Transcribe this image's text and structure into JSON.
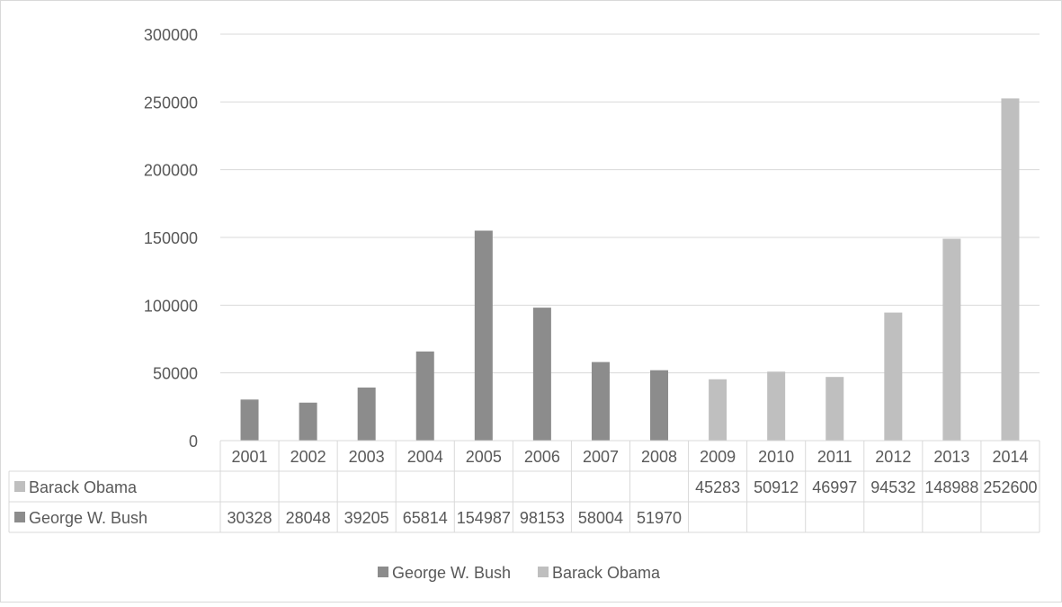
{
  "chart_data": {
    "type": "bar",
    "categories": [
      "2001",
      "2002",
      "2003",
      "2004",
      "2005",
      "2006",
      "2007",
      "2008",
      "2009",
      "2010",
      "2011",
      "2012",
      "2013",
      "2014"
    ],
    "series": [
      {
        "name": "George W. Bush",
        "color": "#8c8c8c",
        "values": [
          30328,
          28048,
          39205,
          65814,
          154987,
          98153,
          58004,
          51970,
          null,
          null,
          null,
          null,
          null,
          null
        ],
        "table_labels": [
          "30328",
          "28048",
          "39205",
          "65814",
          "154987",
          "98153",
          "58004",
          "51970",
          "",
          "",
          "",
          "",
          "",
          ""
        ]
      },
      {
        "name": "Barack Obama",
        "color": "#bfbfbf",
        "values": [
          null,
          null,
          null,
          null,
          null,
          null,
          null,
          null,
          45283,
          50912,
          46997,
          94532,
          148988,
          252600
        ],
        "table_labels": [
          "",
          "",
          "",
          "",
          "",
          "",
          "",
          "",
          "45283",
          "50912",
          "46997",
          "94532",
          "148988",
          "252600"
        ]
      }
    ],
    "yticks": [
      "0",
      "50000",
      "100000",
      "150000",
      "200000",
      "250000",
      "300000"
    ],
    "ylim": [
      0,
      300000
    ],
    "grid": true,
    "data_table": true,
    "legend": {
      "position": "bottom",
      "entries": [
        "George W. Bush",
        "Barack Obama"
      ]
    }
  }
}
